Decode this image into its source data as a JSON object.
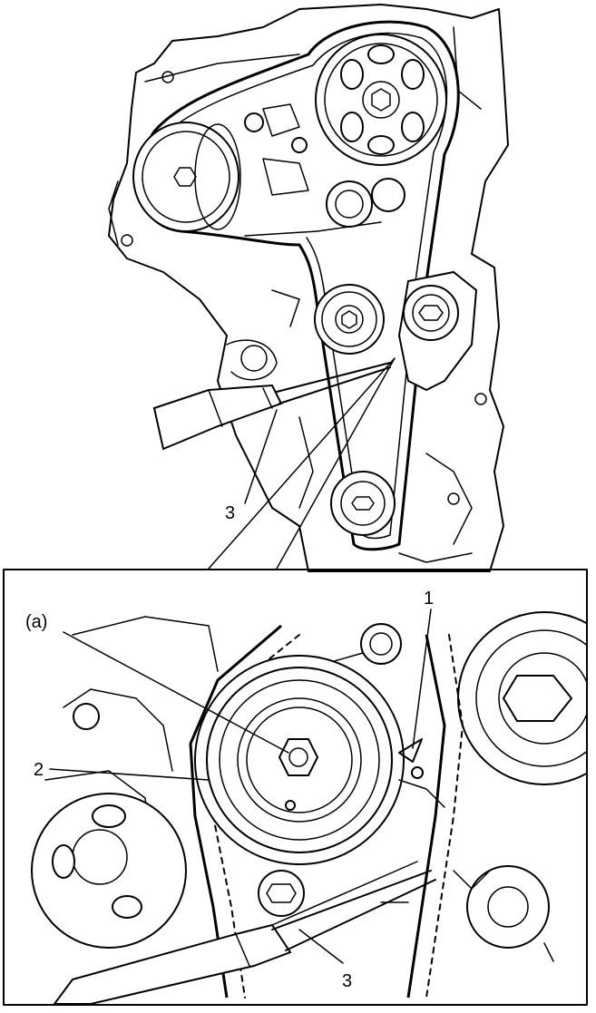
{
  "callouts": {
    "top_tool": "3",
    "detail_view": "(a)",
    "detail_1": "1",
    "detail_2": "2",
    "detail_tool": "3"
  }
}
